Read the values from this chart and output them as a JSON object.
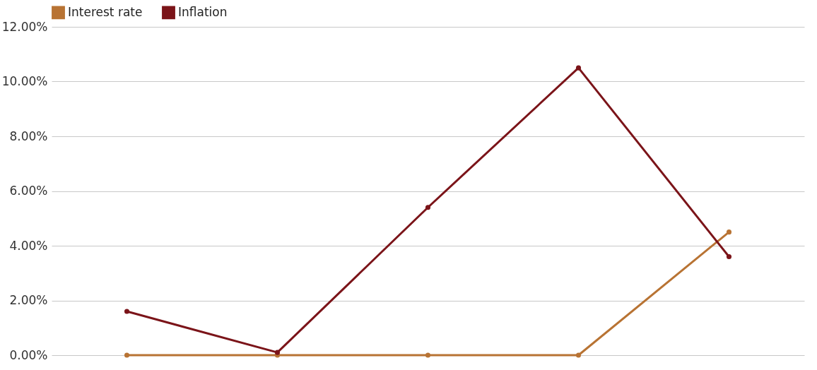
{
  "chart_data": {
    "type": "line",
    "categories": [
      null,
      null,
      null,
      null,
      null
    ],
    "series": [
      {
        "name": "Interest rate",
        "color": "#b87333",
        "values": [
          0,
          0,
          0,
          0,
          4.5
        ]
      },
      {
        "name": "Inflation",
        "color": "#7b1419",
        "values": [
          1.6,
          0.1,
          5.4,
          10.5,
          3.6
        ]
      }
    ],
    "ylim": [
      0,
      12
    ],
    "yticks": [
      {
        "value": 0,
        "label": "0.00%"
      },
      {
        "value": 2,
        "label": "2.00%"
      },
      {
        "value": 4,
        "label": "4.00%"
      },
      {
        "value": 6,
        "label": "6.00%"
      },
      {
        "value": 8,
        "label": "8.00%"
      },
      {
        "value": 10,
        "label": "10.00%"
      },
      {
        "value": 12,
        "label": "12.00%"
      }
    ],
    "grid": "y",
    "legend": "top",
    "marker": "circle",
    "line_style": "solid"
  }
}
